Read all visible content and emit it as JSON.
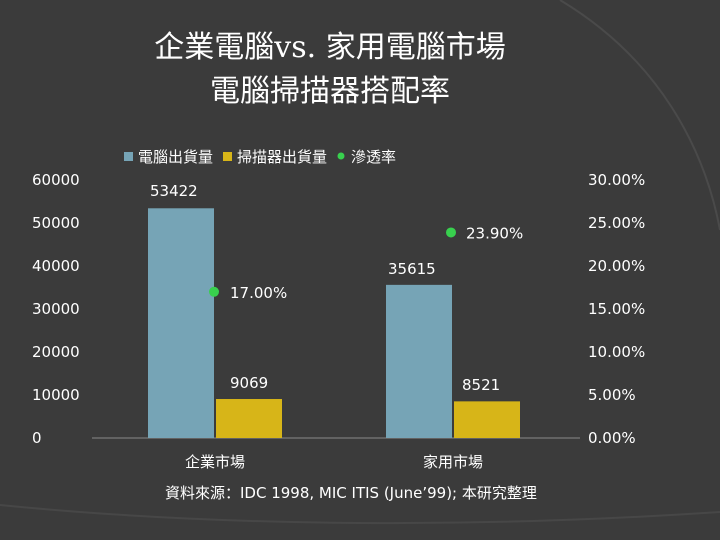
{
  "slide": {
    "title_line1": "企業電腦vs. 家用電腦市場",
    "title_line2": "電腦掃描器搭配率",
    "source": "資料來源：IDC 1998, MIC ITIS (June’99); 本研究整理"
  },
  "colors": {
    "background": "#3b3b3b",
    "series_pc": "#76a4b6",
    "series_scanner": "#d7b518",
    "series_rate": "#38d04e",
    "text": "#ffffff"
  },
  "chart_data": {
    "type": "bar",
    "categories": [
      "企業市場",
      "家用市場"
    ],
    "series": [
      {
        "name": "電腦出貨量",
        "axis": "left",
        "values": [
          53422,
          35615
        ],
        "labels": [
          "53422",
          "35615"
        ]
      },
      {
        "name": "掃描器出貨量",
        "axis": "left",
        "values": [
          9069,
          8521
        ],
        "labels": [
          "9069",
          "8521"
        ]
      },
      {
        "name": "滲透率",
        "axis": "right",
        "type": "scatter",
        "values": [
          0.17,
          0.239
        ],
        "labels": [
          "17.00%",
          "23.90%"
        ]
      }
    ],
    "ylim": [
      0,
      60000
    ],
    "y_ticks": [
      "60000",
      "50000",
      "40000",
      "30000",
      "20000",
      "10000",
      "0"
    ],
    "y2lim": [
      0,
      0.3
    ],
    "y2_ticks": [
      "30.00%",
      "25.00%",
      "20.00%",
      "15.00%",
      "10.00%",
      "5.00%",
      "0.00%"
    ],
    "grid": false,
    "legend": "top"
  }
}
